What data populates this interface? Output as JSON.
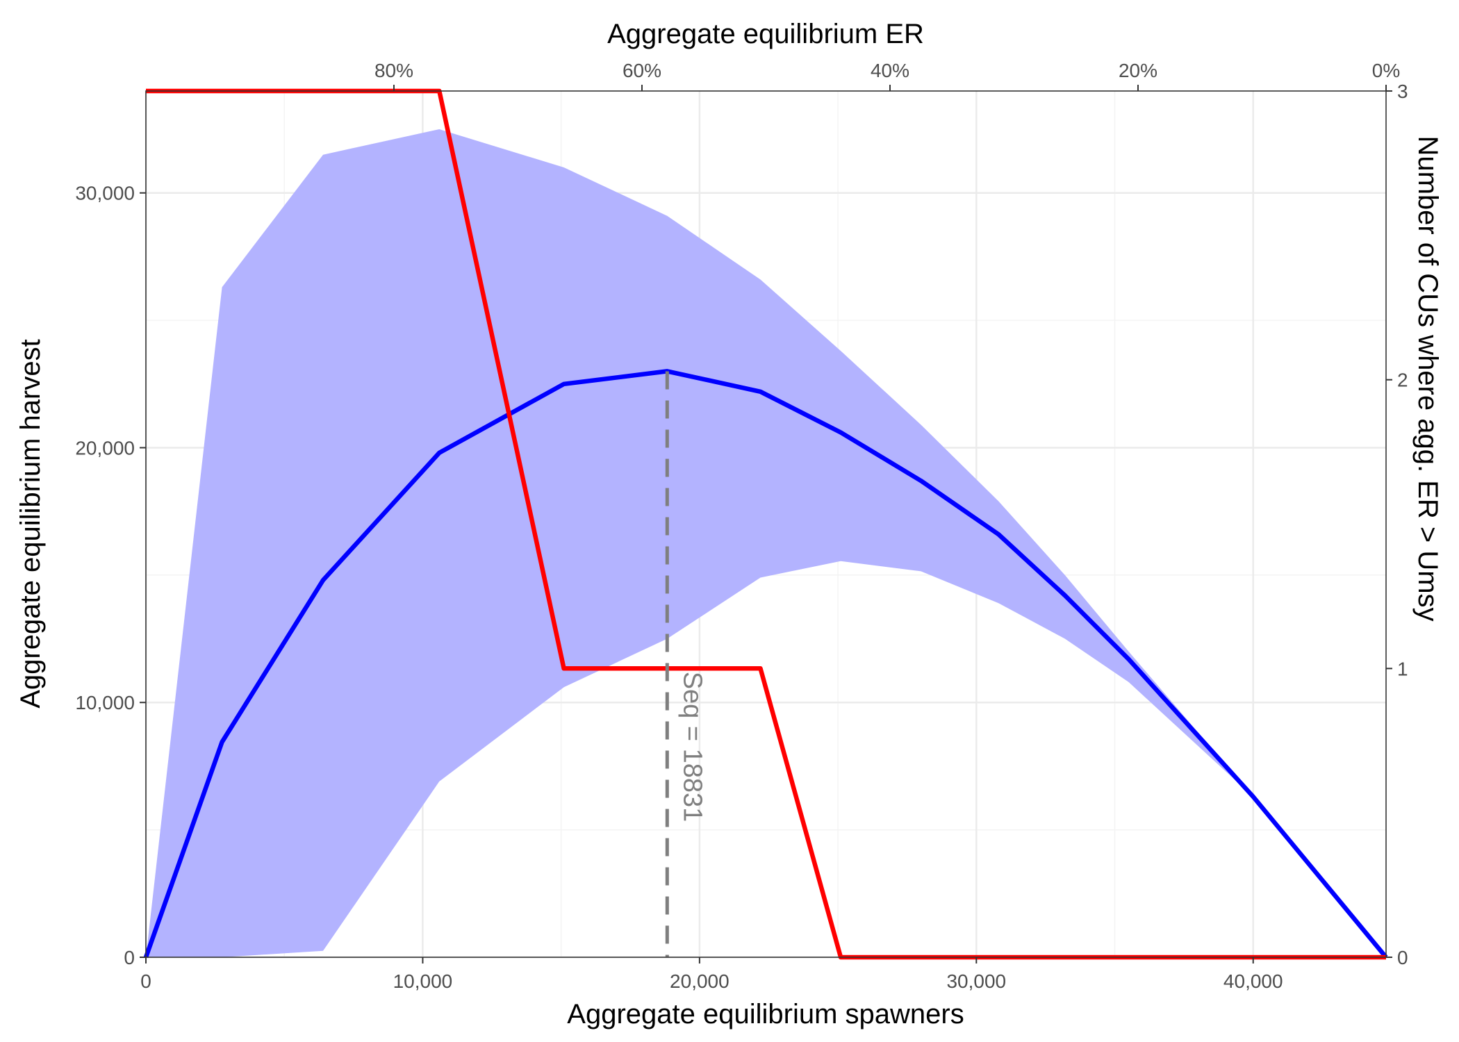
{
  "chart_data": {
    "type": "line",
    "xlabel": "Aggregate equilibrium spawners",
    "ylabel": "Aggregate equilibrium harvest",
    "x2label": "Aggregate equilibrium ER",
    "y2label": "Number of CUs where agg. ER > Umsy",
    "xlim": [
      0,
      44800
    ],
    "ylim": [
      0,
      34000
    ],
    "y2lim": [
      0,
      3.0
    ],
    "x_ticks": [
      0,
      10000,
      20000,
      30000,
      40000
    ],
    "x_tick_labels": [
      "0",
      "10,000",
      "20,000",
      "30,000",
      "40,000"
    ],
    "y_ticks": [
      0,
      10000,
      20000,
      30000
    ],
    "y_tick_labels": [
      "0",
      "10,000",
      "20,000",
      "30,000"
    ],
    "y2_ticks": [
      0,
      1,
      2,
      3
    ],
    "y2_tick_labels": [
      "0",
      "1",
      "2",
      "3"
    ],
    "x2_ticks": [
      0.8,
      0.6,
      0.4,
      0.2,
      0.0
    ],
    "x2_tick_labels": [
      "80%",
      "60%",
      "40%",
      "20%",
      "0%"
    ],
    "grid": true,
    "series": [
      {
        "color": "#0000ff",
        "x": [
          0,
          2750,
          6400,
          10600,
          15100,
          18831,
          22200,
          25100,
          28000,
          30800,
          33200,
          35500,
          40000,
          44800
        ],
        "values": [
          0,
          8450,
          14800,
          19800,
          22500,
          23000,
          22200,
          20600,
          18700,
          16600,
          14200,
          11700,
          6300,
          0
        ]
      },
      {
        "color": "#ff0000",
        "axis": "right",
        "x": [
          0,
          10600,
          15100,
          22200,
          25100,
          44800
        ],
        "values": [
          3,
          3,
          1,
          1,
          0,
          0
        ]
      }
    ],
    "band": {
      "color": "#b3b3ff",
      "x": [
        0,
        2750,
        6400,
        10600,
        15100,
        18831,
        22200,
        25100,
        28000,
        30800,
        33200,
        35500,
        40000,
        44800
      ],
      "lower": [
        0,
        0,
        250,
        6900,
        10600,
        12500,
        14900,
        15550,
        15150,
        13900,
        12500,
        10800,
        6300,
        0
      ],
      "upper": [
        0,
        26300,
        31500,
        32500,
        31000,
        29100,
        26600,
        23800,
        20900,
        17900,
        15000,
        12000,
        6300,
        0
      ]
    },
    "vline": {
      "x": 18831,
      "color": "#7f7f7f",
      "label": "Seq = 18831"
    }
  }
}
